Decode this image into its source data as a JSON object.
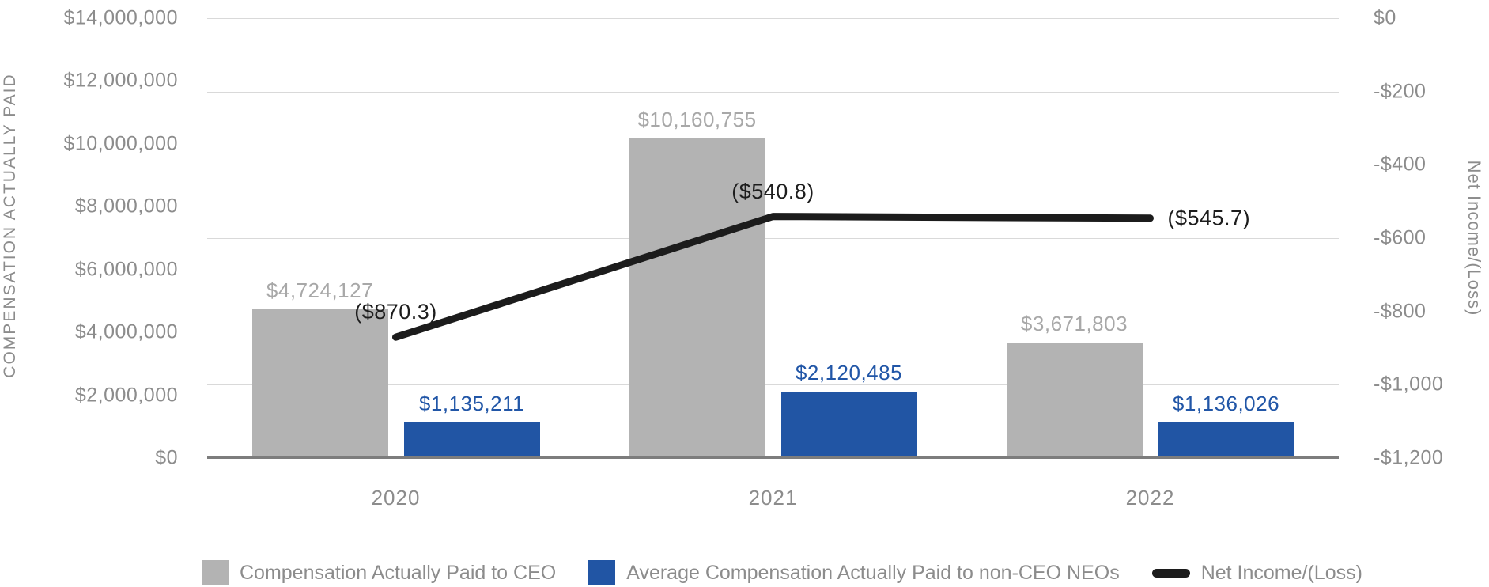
{
  "chart_data": {
    "type": "combo-bar-line",
    "title": "",
    "categories": [
      "2020",
      "2021",
      "2022"
    ],
    "series": [
      {
        "name": "Compensation Actually Paid to CEO",
        "type": "bar",
        "axis": "left",
        "color": "#b3b3b3",
        "label_color": "#a8a8a8",
        "values": [
          4724127,
          10160755,
          3671803
        ],
        "labels": [
          "$4,724,127",
          "$10,160,755",
          "$3,671,803"
        ]
      },
      {
        "name": "Average Compensation Actually Paid to non-CEO NEOs",
        "type": "bar",
        "axis": "left",
        "color": "#2155a4",
        "label_color": "#2156a7",
        "values": [
          1135211,
          2120485,
          1136026
        ],
        "labels": [
          "$1,135,211",
          "$2,120,485",
          "$1,136,026"
        ]
      },
      {
        "name": "Net Income/(Loss)",
        "type": "line",
        "axis": "right",
        "color": "#1c1c1c",
        "values": [
          -870.3,
          -540.8,
          -545.7
        ],
        "labels": [
          "($870.3)",
          "($540.8)",
          "($545.7)"
        ],
        "label_placements": [
          "above",
          "above",
          "right"
        ]
      }
    ],
    "left_axis": {
      "title": "COMPENSATION ACTUALLY PAID",
      "min": 0,
      "max": 14000000,
      "ticks": [
        "$14,000,000",
        "$12,000,000",
        "$10,000,000",
        "$8,000,000",
        "$6,000,000",
        "$4,000,000",
        "$2,000,000",
        "$0"
      ]
    },
    "right_axis": {
      "title": "Net Income/(Loss)",
      "min": -1200,
      "max": 0,
      "ticks": [
        "$0",
        "-$200",
        "-$400",
        "-$600",
        "-$800",
        "-$1,000",
        "-$1,200"
      ]
    },
    "x_axis": {
      "labels": [
        "2020",
        "2021",
        "2022"
      ]
    },
    "grid": true,
    "legend_position": "bottom",
    "legend": [
      {
        "swatch": "gray-square",
        "label": "Compensation Actually Paid to CEO"
      },
      {
        "swatch": "blue-square",
        "label": "Average Compensation Actually Paid to non-CEO NEOs"
      },
      {
        "swatch": "black-line",
        "label": "Net Income/(Loss)"
      }
    ],
    "colors": {
      "gridline": "#d9d9d9",
      "axis_line": "#7d7d7d",
      "axis_text": "#8c8c8c",
      "background": "#ffffff"
    }
  }
}
